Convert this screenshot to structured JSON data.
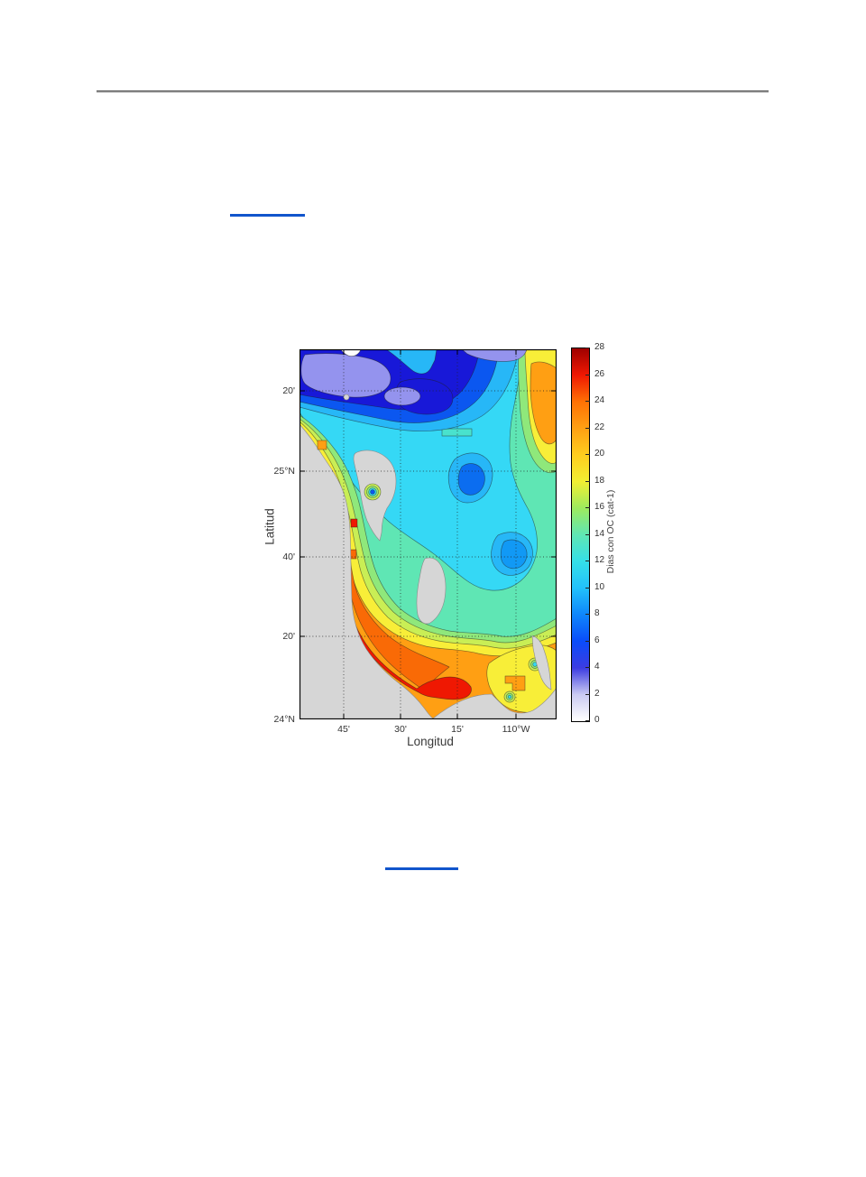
{
  "page": {
    "background": "#ffffff"
  },
  "colors": {
    "accent_link": "#1155cc",
    "rule_gray": "#7d7d7d",
    "land_gray": "#d6d6d6",
    "band_palette": [
      "#ffffff",
      "#cacaf2",
      "#3c3ce2",
      "#0a4cfa",
      "#0f86fb",
      "#22c1fb",
      "#35e0e8",
      "#5fe6b4",
      "#9deb5e",
      "#f2ef32",
      "#ffcd1e",
      "#ffa013",
      "#ff7104",
      "#ef1802",
      "#9f0000"
    ]
  },
  "links": [
    {
      "id": "link-1",
      "text": ""
    },
    {
      "id": "link-2",
      "text": ""
    }
  ],
  "figure": {
    "x_axis": {
      "label": "Longitud",
      "ticks": [
        "45'",
        "30'",
        "15'",
        "110°W"
      ]
    },
    "y_axis": {
      "label": "Latitud",
      "ticks": [
        "20'",
        "25°N",
        "40'",
        "20'",
        "24°N"
      ]
    },
    "colorbar": {
      "label": "Dias con OC (cat-1)",
      "ticks": [
        28,
        26,
        24,
        22,
        20,
        18,
        16,
        14,
        12,
        10,
        8,
        6,
        4,
        2,
        0
      ],
      "min": 0,
      "max": 28,
      "stops": [
        {
          "v": 0,
          "c": "#ffffff"
        },
        {
          "v": 2,
          "c": "#cacaf2"
        },
        {
          "v": 4,
          "c": "#3c3ce2"
        },
        {
          "v": 6,
          "c": "#0a4cfa"
        },
        {
          "v": 8,
          "c": "#0f86fb"
        },
        {
          "v": 10,
          "c": "#22c1fb"
        },
        {
          "v": 12,
          "c": "#35e0e8"
        },
        {
          "v": 14,
          "c": "#5fe6b4"
        },
        {
          "v": 16,
          "c": "#9deb5e"
        },
        {
          "v": 18,
          "c": "#f2ef32"
        },
        {
          "v": 20,
          "c": "#ffcd1e"
        },
        {
          "v": 22,
          "c": "#ffa013"
        },
        {
          "v": 24,
          "c": "#ff7104"
        },
        {
          "v": 26,
          "c": "#ef1802"
        },
        {
          "v": 28,
          "c": "#9f0000"
        }
      ]
    }
  },
  "chart_data": {
    "type": "heatmap",
    "subtype": "filled-contour-map",
    "title": "",
    "xlabel": "Longitud",
    "ylabel": "Latitud",
    "x_tick_labels": [
      "45'",
      "30'",
      "15'",
      "110°W"
    ],
    "y_tick_labels": [
      "20'",
      "25°N",
      "40'",
      "20'",
      "24°N"
    ],
    "x_range_approx": [
      "110°55'W",
      "109°48'W"
    ],
    "y_range_approx": [
      "24°N",
      "25°28'N"
    ],
    "grid": "dotted, on",
    "legend_position": "colorbar right",
    "colorbar_label": "Dias con OC (cat-1)",
    "contour_levels": [
      0,
      2,
      4,
      6,
      8,
      10,
      12,
      14,
      16,
      18,
      20,
      22,
      24,
      26,
      28
    ],
    "regions": [
      {
        "area": "northern band across top (offshore Gulf entrance)",
        "value_range": "2-8",
        "note": "lowest values; pale violet patches ~2-4 inside dark blue ~4-6"
      },
      {
        "area": "white notch at top edge",
        "value_range": "0-2"
      },
      {
        "area": "central basin east of Bahia de La Paz",
        "value_range": "8-12",
        "note": "cyan with two enclosed blue pockets ~6-8"
      },
      {
        "area": "small enclosed cyan rectangle patch mid-map",
        "value_range": "12-14"
      },
      {
        "area": "eastern boundary column",
        "value_range": "16-24",
        "note": "orange maximum blob ~22-24 at upper right edge"
      },
      {
        "area": "coastal strip along southwest peninsula",
        "value_range": "22-26",
        "note": "dark orange with red patches ~26"
      },
      {
        "area": "south tip (Cabo) red patch",
        "value_range": "26"
      },
      {
        "area": "southeast corner around Isla Cerralvo",
        "value_range": "18-22",
        "note": "yellow patch with two small green-cyan bullseyes ~12-16"
      },
      {
        "area": "bay-mouth bullseye near La Paz",
        "value_range": "6-16",
        "note": "tight concentric rings, blue core"
      },
      {
        "area": "gray regions (Baja peninsula, Bahia de La Paz interior, Isla Espiritu Santo, Isla Cerralvo, SE corner)",
        "value_range": "land / no data"
      }
    ]
  }
}
